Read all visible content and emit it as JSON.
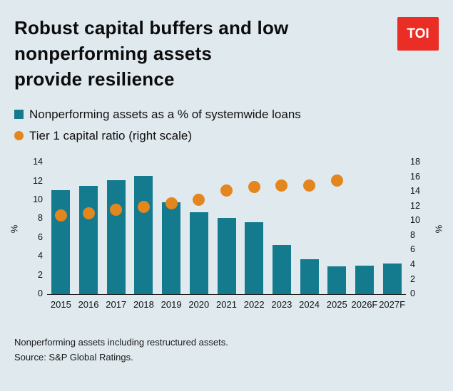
{
  "header": {
    "title": "Robust capital buffers and low\nnonperforming assets\nprovide resilience",
    "logo": "TOI",
    "logo_color": "#ea2d25"
  },
  "legend": [
    {
      "label": "Nonperforming assets as a % of systemwide loans",
      "shape": "square",
      "color": "#147a8e"
    },
    {
      "label": "Tier 1 capital ratio (right scale)",
      "shape": "circle",
      "color": "#e2861d"
    }
  ],
  "chart_data": {
    "type": "bar",
    "categories": [
      "2015",
      "2016",
      "2017",
      "2018",
      "2019",
      "2020",
      "2021",
      "2022",
      "2023",
      "2024",
      "2025",
      "2026F",
      "2027F"
    ],
    "series": [
      {
        "name": "Nonperforming assets as a % of systemwide loans",
        "type": "bar",
        "axis": "left",
        "color": "#147a8e",
        "values": [
          11.0,
          11.5,
          12.1,
          12.5,
          9.7,
          8.7,
          8.1,
          7.6,
          5.2,
          3.7,
          2.9,
          3.0,
          3.2
        ]
      },
      {
        "name": "Tier 1 capital ratio (right scale)",
        "type": "scatter",
        "axis": "right",
        "color": "#e2861d",
        "values": [
          10.7,
          11.0,
          11.5,
          11.9,
          12.4,
          12.9,
          14.1,
          14.6,
          14.8,
          14.8,
          15.5,
          null,
          null
        ]
      }
    ],
    "left_axis": {
      "label": "%",
      "min": 0,
      "max": 14,
      "ticks": [
        0,
        2,
        4,
        6,
        8,
        10,
        12,
        14
      ]
    },
    "right_axis": {
      "label": "%",
      "min": 0,
      "max": 18,
      "ticks": [
        0,
        2,
        4,
        6,
        8,
        10,
        12,
        14,
        16,
        18
      ]
    },
    "grid": false,
    "legend_position": "top-left"
  },
  "footer": {
    "note": "Nonperforming assets including restructured assets.",
    "source": "Source: S&P Global Ratings."
  }
}
